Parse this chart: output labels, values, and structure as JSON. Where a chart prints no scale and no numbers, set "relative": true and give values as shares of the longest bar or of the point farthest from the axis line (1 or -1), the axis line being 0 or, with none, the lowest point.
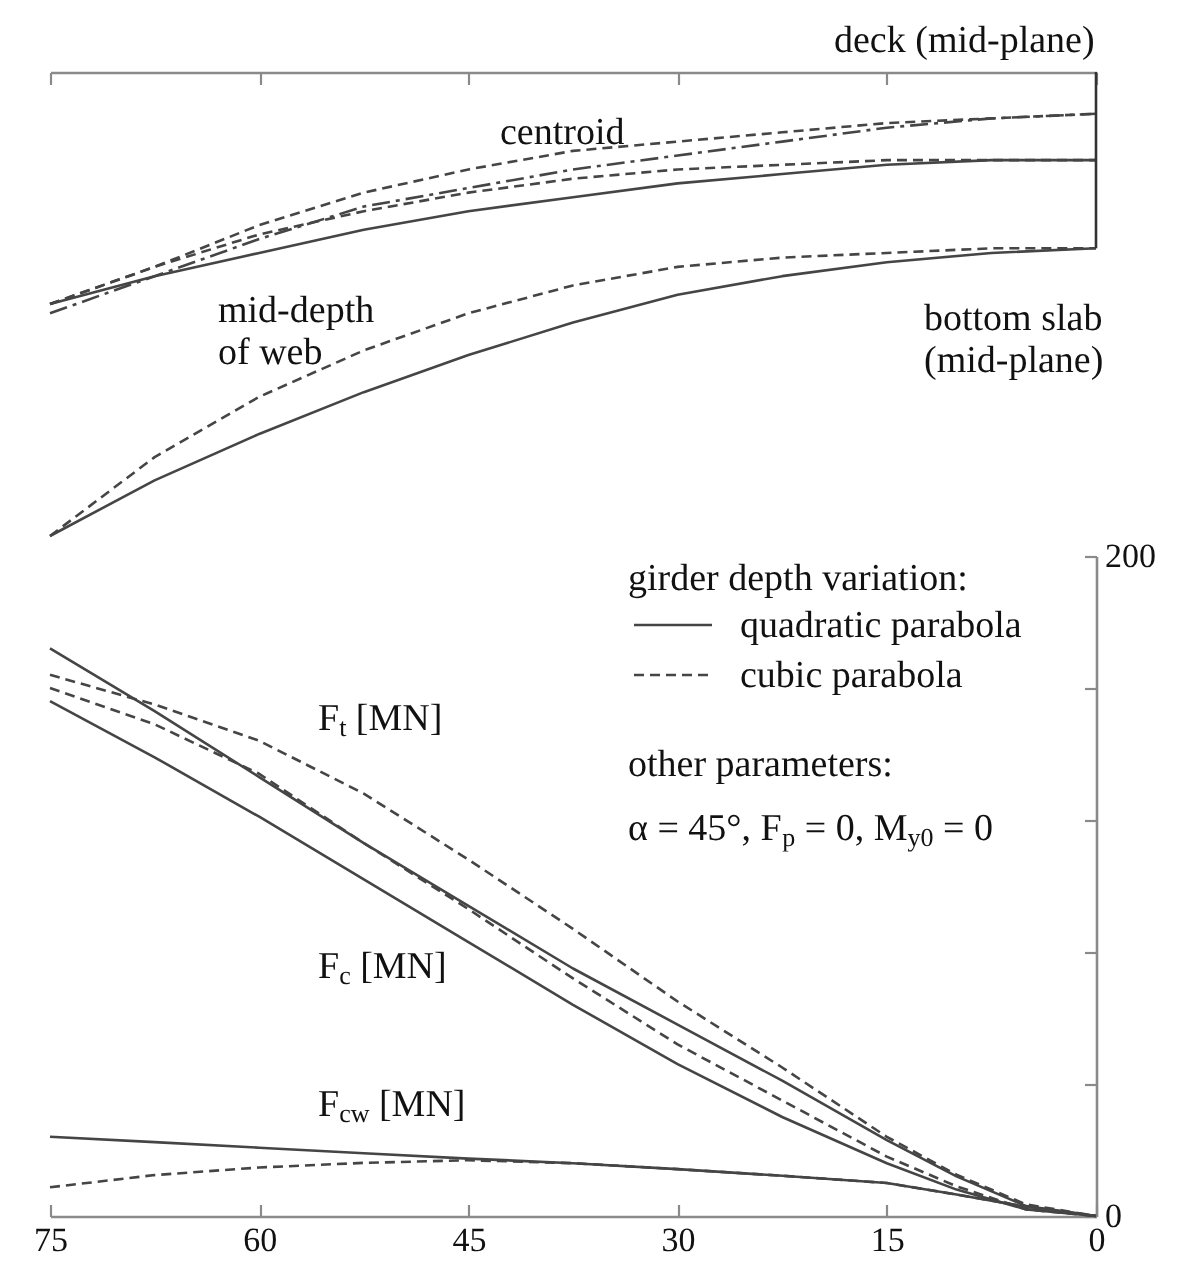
{
  "chart_data": [
    {
      "type": "line",
      "relative": true,
      "xlim": [
        75,
        0
      ],
      "xticks": [
        75,
        60,
        45,
        30,
        15,
        0
      ],
      "tick_labels": false,
      "x": [
        75,
        67.5,
        60,
        52.5,
        45,
        37.5,
        30,
        22.5,
        15,
        7.5,
        0
      ],
      "series": [
        {
          "color": "#454545",
          "line_style": "dashdot",
          "values": [
            -0.52,
            -0.44,
            -0.36,
            -0.29,
            -0.25,
            -0.21,
            -0.18,
            -0.15,
            -0.12,
            -0.1,
            -0.09
          ]
        },
        {
          "color": "#454545",
          "line_style": "dashed",
          "values": [
            -0.5,
            -0.42,
            -0.33,
            -0.26,
            -0.21,
            -0.17,
            -0.15,
            -0.13,
            -0.11,
            -0.1,
            -0.09
          ]
        },
        {
          "color": "#454545",
          "line_style": "solid",
          "values": [
            -0.5,
            -0.44,
            -0.39,
            -0.34,
            -0.3,
            -0.27,
            -0.24,
            -0.22,
            -0.2,
            -0.19,
            -0.19
          ]
        },
        {
          "color": "#454545",
          "line_style": "dashed",
          "values": [
            -0.5,
            -0.42,
            -0.35,
            -0.3,
            -0.26,
            -0.23,
            -0.21,
            -0.2,
            -0.19,
            -0.19,
            -0.19
          ]
        },
        {
          "color": "#454545",
          "line_style": "solid",
          "values": [
            -1.0,
            -0.88,
            -0.78,
            -0.69,
            -0.61,
            -0.54,
            -0.48,
            -0.44,
            -0.41,
            -0.39,
            -0.38
          ]
        },
        {
          "color": "#454545",
          "line_style": "dashed",
          "values": [
            -1.0,
            -0.83,
            -0.7,
            -0.6,
            -0.52,
            -0.46,
            -0.42,
            -0.4,
            -0.39,
            -0.38,
            -0.38
          ]
        },
        {
          "color": "#333333",
          "line_style": "solid",
          "x": [
            0,
            0
          ],
          "values": [
            0,
            -0.38
          ]
        }
      ],
      "annotations": [
        "deck (mid-plane)",
        "centroid",
        "mid-depth\nof web",
        "bottom slab\n(mid-plane)"
      ]
    },
    {
      "type": "line",
      "xlim": [
        75,
        0
      ],
      "xticks": [
        75,
        60,
        45,
        30,
        15,
        0
      ],
      "ylim": [
        0,
        200
      ],
      "yticks": [
        0,
        {
          "value": 40,
          "label": null
        },
        {
          "value": 80,
          "label": null
        },
        {
          "value": 120,
          "label": null
        },
        {
          "value": 160,
          "label": null
        },
        200
      ],
      "x": [
        75,
        67.5,
        60,
        52.5,
        45,
        37.5,
        30,
        22.5,
        15,
        10,
        5,
        0
      ],
      "legend": "top right",
      "legend_title": "girder depth variation:",
      "series": [
        {
          "name": "quadratic parabola",
          "color": "#454545",
          "line_style": "solid",
          "values": [
            172,
            153,
            133,
            113,
            94,
            75,
            58,
            41,
            23,
            12,
            3,
            0
          ]
        },
        {
          "name": "cubic parabola",
          "color": "#454545",
          "line_style": "dashed",
          "values": [
            164,
            155,
            144,
            128,
            108,
            87,
            65,
            45,
            24,
            12.5,
            3.5,
            0
          ]
        },
        {
          "color": "#454545",
          "line_style": "dashed",
          "values": [
            160,
            149,
            134,
            113,
            93,
            72,
            52,
            35,
            18,
            9,
            2,
            0
          ]
        },
        {
          "color": "#454545",
          "line_style": "solid",
          "values": [
            156,
            139,
            121,
            102,
            83,
            64,
            46,
            30,
            16,
            8,
            2,
            0
          ]
        },
        {
          "color": "#454545",
          "line_style": "solid",
          "values": [
            24,
            22.4,
            20.7,
            19,
            17.4,
            16,
            14.2,
            12.2,
            10,
            6.5,
            2.8,
            0
          ]
        },
        {
          "color": "#454545",
          "line_style": "dashed",
          "values": [
            8.7,
            12.4,
            14.7,
            16.1,
            16.9,
            16,
            14.2,
            12.2,
            10,
            6.5,
            2.8,
            0
          ]
        }
      ],
      "annotations": [
        "F$_{t}$ [MN]",
        "F$_{c}$ [MN]",
        "F$_{cw}$ [MN]",
        "other parameters:",
        "α = 45°, F$_{p}$ = 0, M$_{y0}$ = 0"
      ]
    }
  ]
}
